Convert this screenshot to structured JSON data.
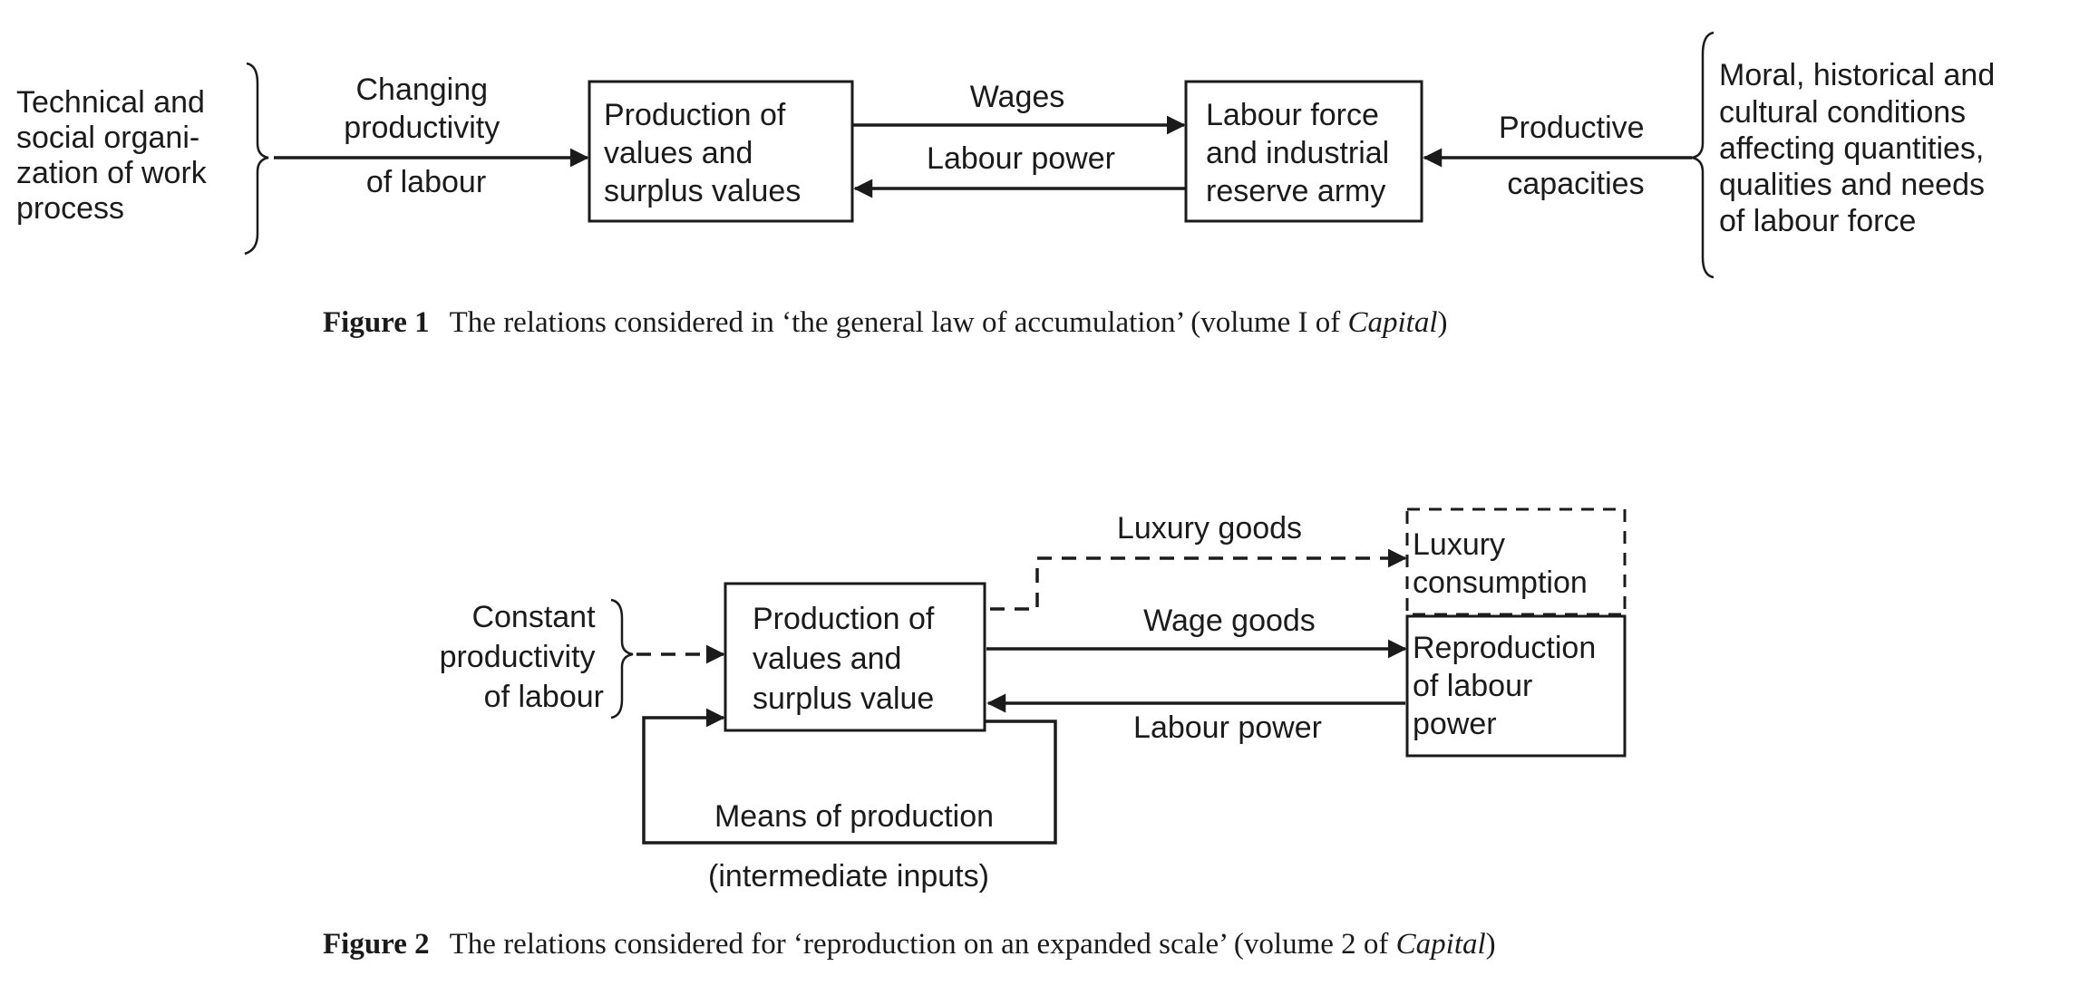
{
  "figure1": {
    "left_text": [
      "Technical and",
      "social organi-",
      "zation of work",
      "process"
    ],
    "changing_productivity": [
      "Changing",
      "productivity",
      "of labour"
    ],
    "box_production": [
      "Production of",
      "values and",
      "surplus values"
    ],
    "wages": "Wages",
    "labour_power": "Labour power",
    "box_labour_force": [
      "Labour force",
      "and industrial",
      "reserve army"
    ],
    "productive_capacities": [
      "Productive",
      "capacities"
    ],
    "right_text": [
      "Moral, historical and",
      "cultural conditions",
      "affecting quantities,",
      "qualities and needs",
      "of labour force"
    ],
    "caption": {
      "prefix": "Figure 1",
      "text": "The relations considered in ‘the general law of accumulation’ (volume I of ",
      "italic": "Capital",
      "suffix": ")"
    }
  },
  "figure2": {
    "constant_productivity": [
      "Constant",
      "productivity",
      "of labour"
    ],
    "box_production": [
      "Production of",
      "values and",
      "surplus value"
    ],
    "luxury_goods": "Luxury goods",
    "box_luxury": [
      "Luxury",
      "consumption"
    ],
    "wage_goods": "Wage goods",
    "box_reproduction": [
      "Reproduction",
      "of labour",
      "power"
    ],
    "labour_power": "Labour power",
    "means_of_production": "Means of production",
    "intermediate_inputs": "(intermediate inputs)",
    "caption": {
      "prefix": "Figure 2",
      "text": "The relations considered for ‘reproduction on an expanded scale’ (volume 2 of ",
      "italic": "Capital",
      "suffix": ")"
    }
  }
}
